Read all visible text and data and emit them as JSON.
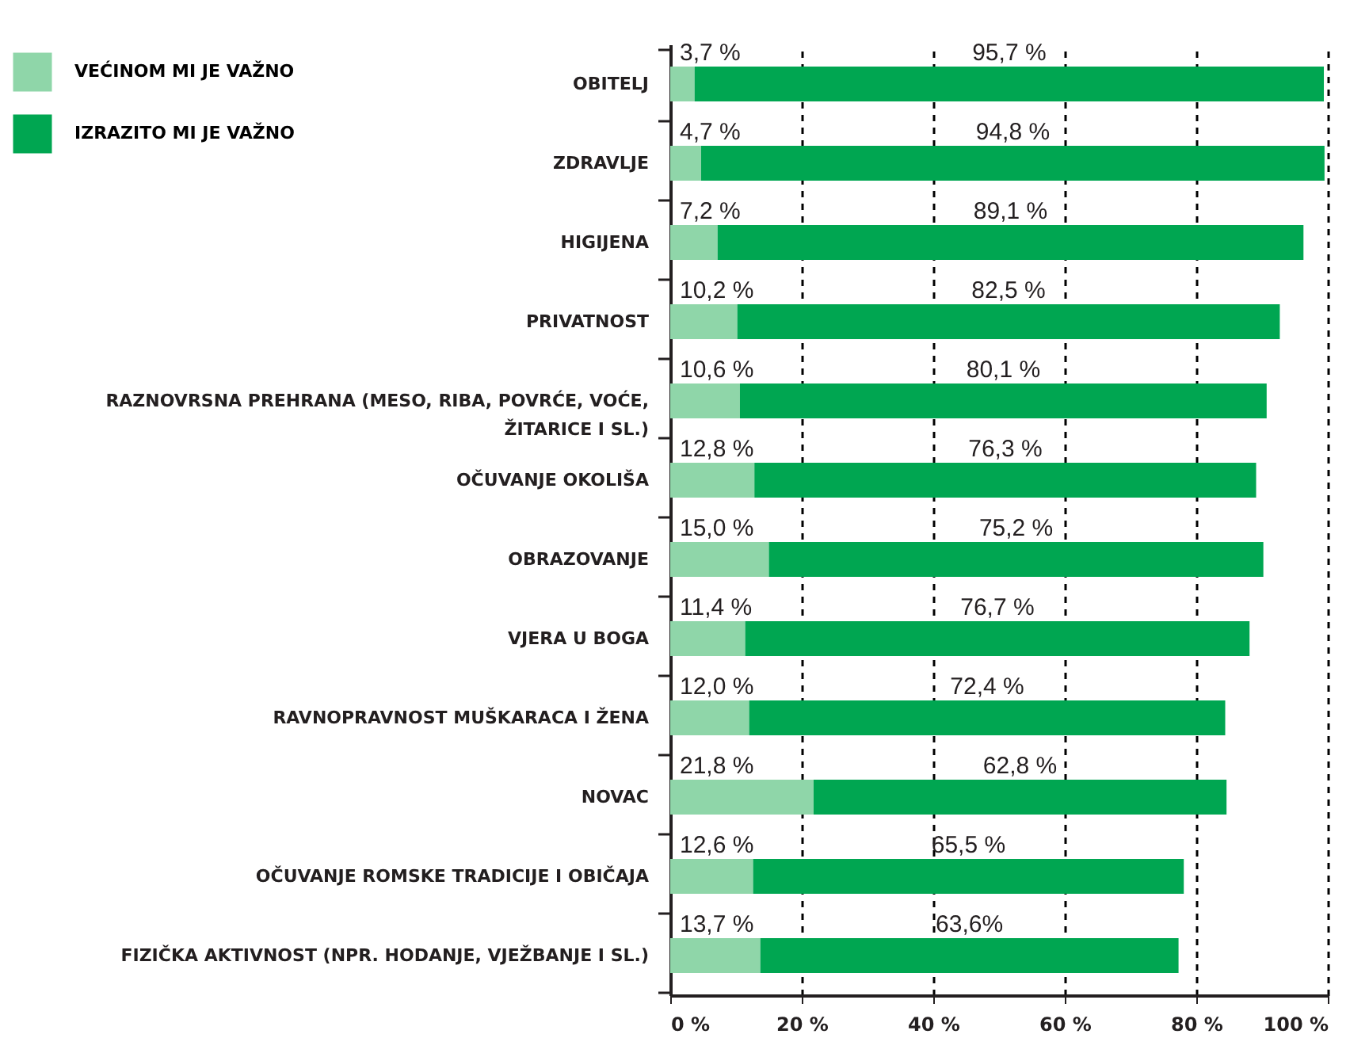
{
  "chart_data": {
    "type": "bar",
    "orientation": "horizontal",
    "stacked": true,
    "categories": [
      "OBITELJ",
      "ZDRAVLJE",
      "HIGIJENA",
      "PRIVATNOST",
      "RAZNOVRSNA PREHRANA (MESO, RIBA, POVRĆE, VOĆE, ŽITARICE I SL.)",
      "OČUVANJE OKOLIŠA",
      "OBRAZOVANJE",
      "VJERA U BOGA",
      "RAVNOPRAVNOST MUŠKARACA I ŽENA",
      "NOVAC",
      "OČUVANJE ROMSKE TRADICIJE I OBIČAJA",
      "FIZIČKA AKTIVNOST (NPR. HODANJE, VJEŽBANJE I SL.)"
    ],
    "series": [
      {
        "name": "VEĆINOM MI JE VAŽNO",
        "color": "#8fd6a9",
        "values": [
          3.7,
          4.7,
          7.2,
          10.2,
          10.6,
          12.8,
          15.0,
          11.4,
          12.0,
          21.8,
          12.6,
          13.7
        ],
        "value_labels": [
          "3,7 %",
          "4,7 %",
          "7,2 %",
          "10,2 %",
          "10,6 %",
          "12,8 %",
          "15,0 %",
          "11,4 %",
          "12,0 %",
          "21,8 %",
          "12,6 %",
          "13,7 %"
        ]
      },
      {
        "name": "IZRAZITO MI JE VAŽNO",
        "color": "#00a651",
        "values": [
          95.7,
          94.8,
          89.1,
          82.5,
          80.1,
          76.3,
          75.2,
          76.7,
          72.4,
          62.8,
          65.5,
          63.6
        ],
        "value_labels": [
          "95,7 %",
          "94,8 %",
          "89,1 %",
          "82,5 %",
          "80,1 %",
          "76,3 %",
          "75,2 %",
          "76,7 %",
          "72,4 %",
          "62,8 %",
          "65,5 %",
          "63,6%"
        ]
      }
    ],
    "xlim": [
      0,
      100
    ],
    "xticks": [
      {
        "value": 0,
        "label": "0 %"
      },
      {
        "value": 20,
        "label": "20 %"
      },
      {
        "value": 40,
        "label": "40 %"
      },
      {
        "value": 60,
        "label": "60 %"
      },
      {
        "value": 80,
        "label": "80 %"
      },
      {
        "value": 100,
        "label": "100 %"
      }
    ],
    "grid": "x",
    "legend": "top left"
  }
}
